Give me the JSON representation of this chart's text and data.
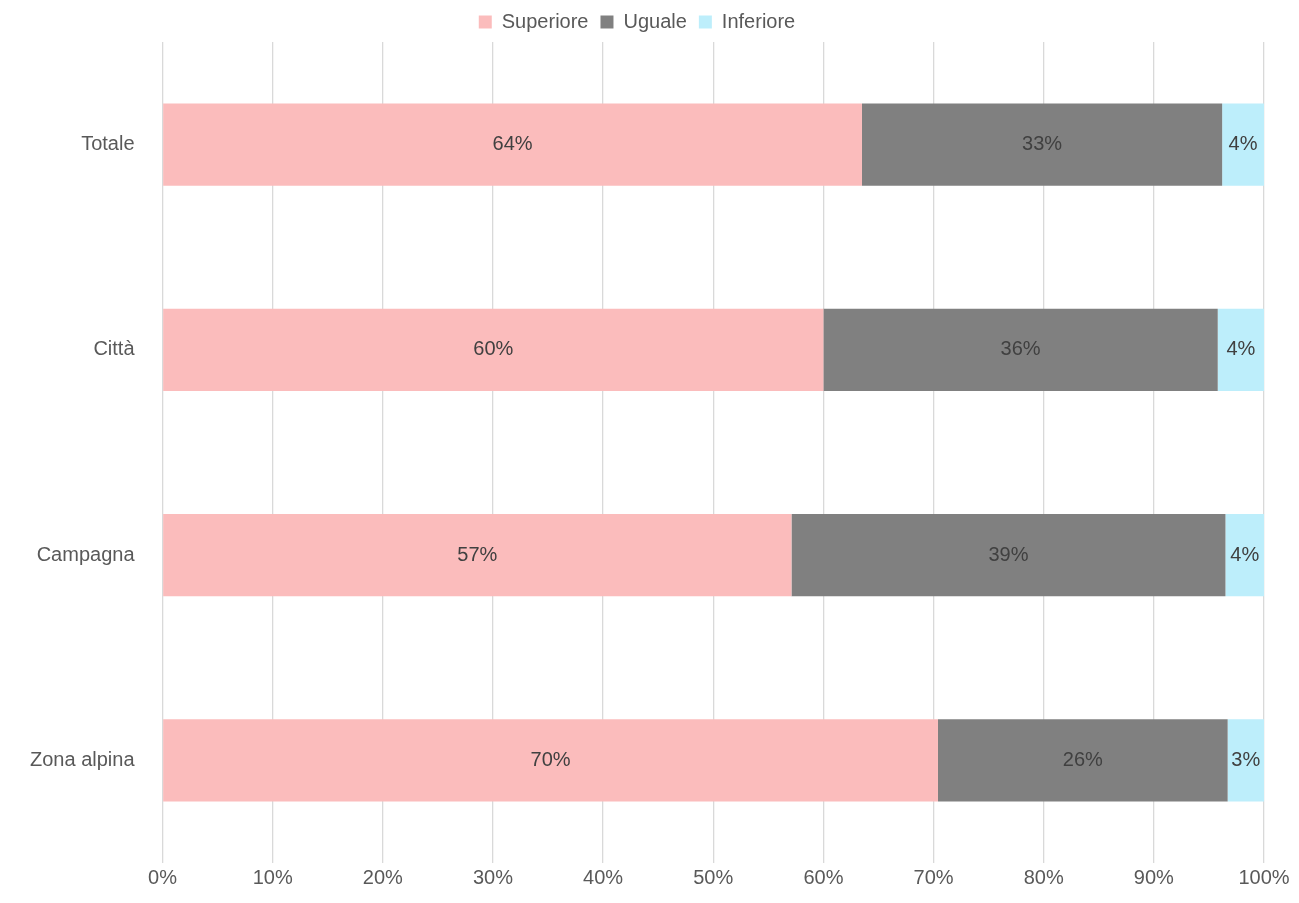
{
  "chart_data": {
    "type": "bar",
    "orientation": "horizontal",
    "stacked": true,
    "categories": [
      "Totale",
      "Città",
      "Campagna",
      "Zona alpina"
    ],
    "series": [
      {
        "name": "Superiore",
        "color": "#fbbcbc",
        "values": [
          63.5,
          60,
          57.1,
          70.4
        ],
        "value_labels": [
          "64%",
          "60%",
          "57%",
          "70%"
        ]
      },
      {
        "name": "Uguale",
        "color": "#808080",
        "values": [
          32.7,
          35.8,
          39.4,
          26.3
        ],
        "value_labels": [
          "33%",
          "36%",
          "39%",
          "26%"
        ]
      },
      {
        "name": "Inferiore",
        "color": "#bdeefb",
        "values": [
          3.8,
          4.2,
          3.5,
          3.3
        ],
        "value_labels": [
          "4%",
          "4%",
          "4%",
          "3%"
        ]
      }
    ],
    "xlim": [
      0,
      100
    ],
    "xticks": [
      {
        "value": 0,
        "label": "0%"
      },
      {
        "value": 10,
        "label": "10%"
      },
      {
        "value": 20,
        "label": "20%"
      },
      {
        "value": 30,
        "label": "30%"
      },
      {
        "value": 40,
        "label": "40%"
      },
      {
        "value": 50,
        "label": "50%"
      },
      {
        "value": 60,
        "label": "60%"
      },
      {
        "value": 70,
        "label": "70%"
      },
      {
        "value": 80,
        "label": "80%"
      },
      {
        "value": 90,
        "label": "90%"
      },
      {
        "value": 100,
        "label": "100%"
      }
    ],
    "grid": "x",
    "legend": "top"
  }
}
